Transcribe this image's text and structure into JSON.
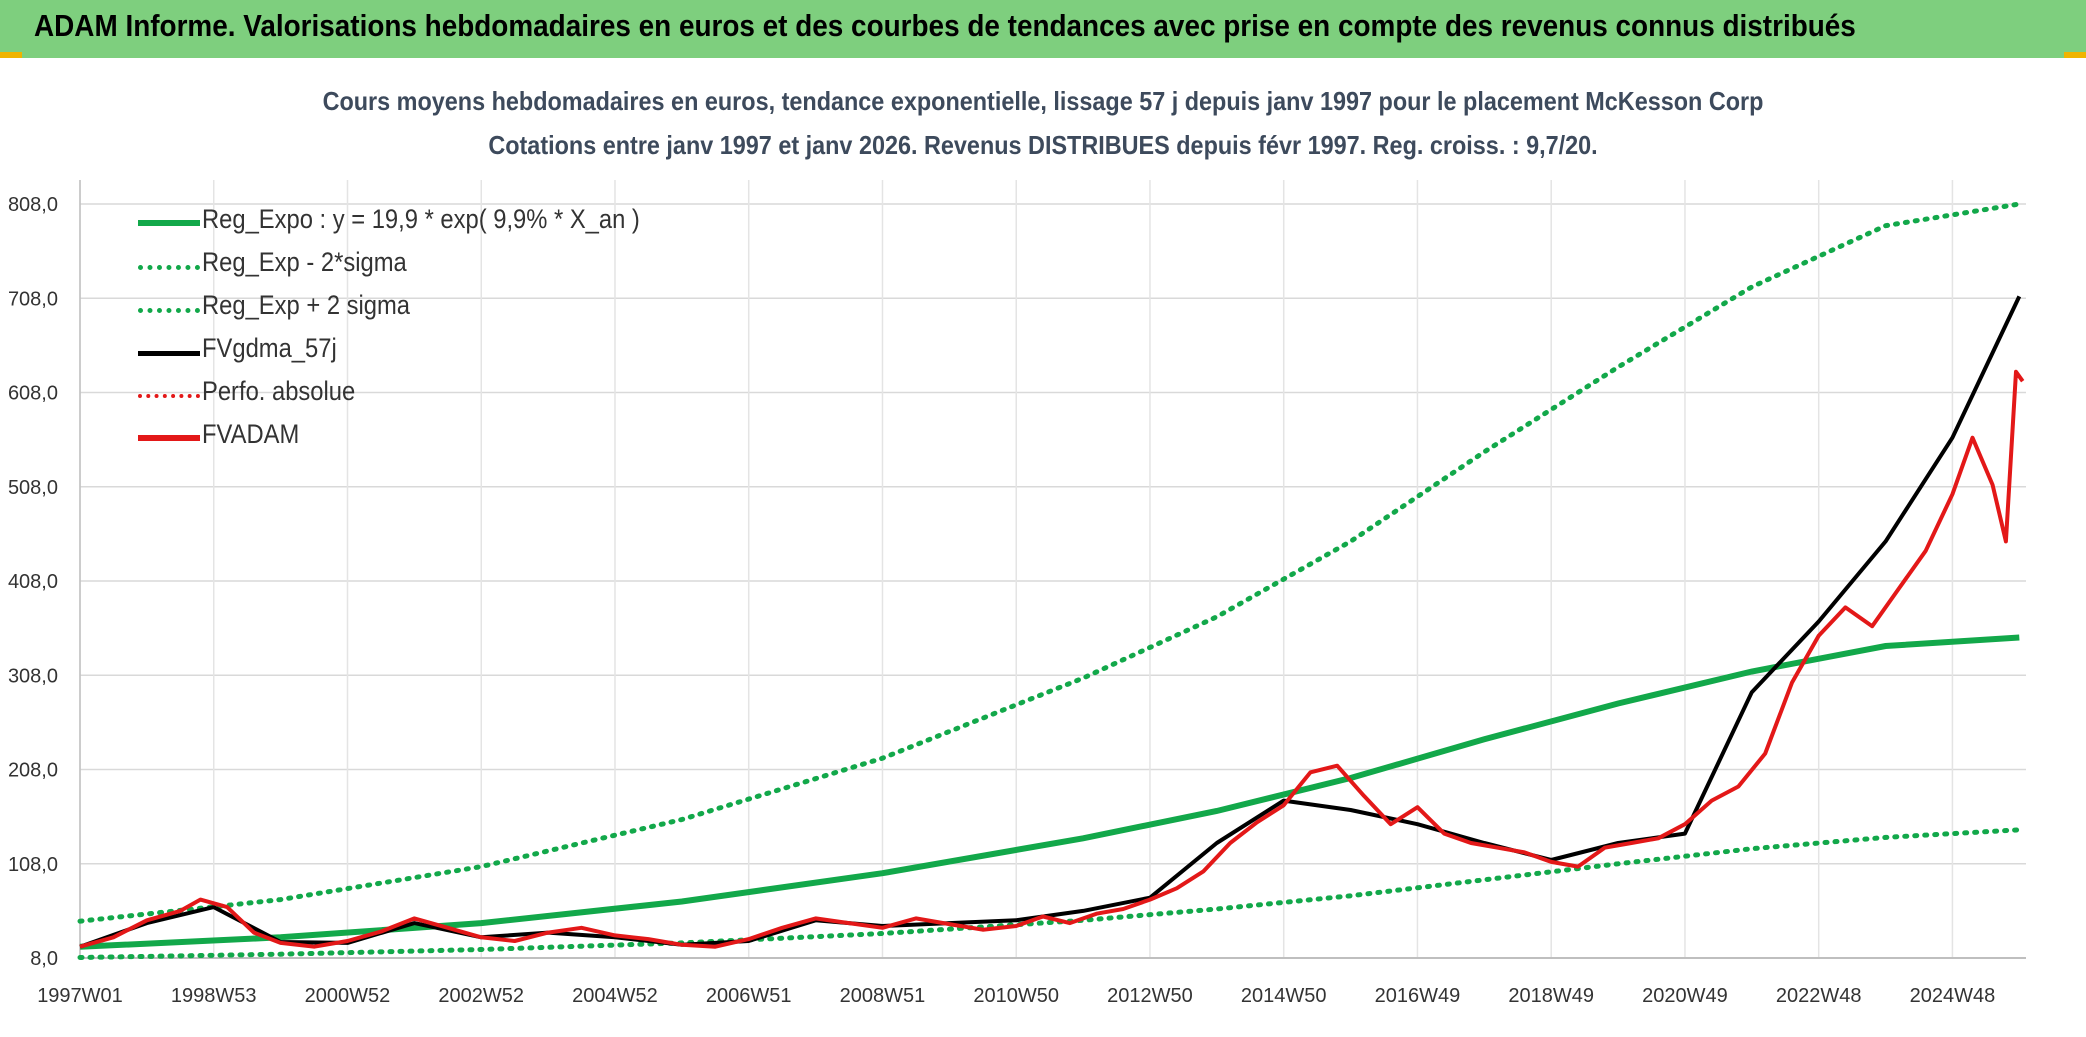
{
  "header": {
    "title": "ADAM Informe. Valorisations hebdomadaires en euros et des courbes de tendances avec prise en compte des revenus connus distribués"
  },
  "colors": {
    "header_bg": "#7ecf7e",
    "reg_green": "#12a84a",
    "fvgdma": "#000000",
    "fvadam": "#e31818",
    "grid": "#d9d9d9"
  },
  "chart_data": {
    "type": "line",
    "title_line1": "Cours moyens hebdomadaires en euros, tendance exponentielle, lissage 57 j depuis janv 1997 pour le placement McKesson Corp",
    "title_line2": "Cotations entre janv 1997 et janv 2026. Revenus DISTRIBUES depuis févr 1997. Reg. croiss. : 9,7/20.",
    "x_unit": "years since 1997W01",
    "xlim": [
      0,
      29.1
    ],
    "ylim": [
      8,
      808
    ],
    "yticks": [
      8,
      108,
      208,
      308,
      408,
      508,
      608,
      708,
      808
    ],
    "ytick_labels": [
      "8,0",
      "108,0",
      "208,0",
      "308,0",
      "408,0",
      "508,0",
      "608,0",
      "708,0",
      "808,0"
    ],
    "xtick_positions": [
      0,
      2,
      4,
      6,
      8,
      10,
      12,
      14,
      16,
      18,
      20,
      22,
      24,
      26,
      28
    ],
    "xtick_labels": [
      "1997W01",
      "1998W53",
      "2000W52",
      "2002W52",
      "2004W52",
      "2006W51",
      "2008W51",
      "2010W50",
      "2012W50",
      "2014W50",
      "2016W49",
      "2018W49",
      "2020W49",
      "2022W48",
      "2024W48"
    ],
    "legend": [
      {
        "name": "Reg_Expo : y = 19,9 * exp( 9,9% *  X_an )",
        "style": "solid",
        "color": "#12a84a"
      },
      {
        "name": "Reg_Exp - 2*sigma",
        "style": "dotted",
        "color": "#12a84a"
      },
      {
        "name": "Reg_Exp + 2 sigma",
        "style": "dotted",
        "color": "#12a84a"
      },
      {
        "name": "FVgdma_57j",
        "style": "solid",
        "color": "#000000"
      },
      {
        "name": "Perfo. absolue",
        "style": "dotted",
        "color": "#e31818"
      },
      {
        "name": "FVADAM",
        "style": "solid",
        "color": "#e31818"
      }
    ],
    "series": [
      {
        "name": "Reg_Expo",
        "x": [
          0,
          3,
          6,
          9,
          12,
          15,
          17,
          19,
          21,
          23,
          25,
          27,
          29
        ],
        "values": [
          19.9,
          30,
          45,
          68,
          98,
          135,
          164,
          199,
          240,
          278,
          312,
          339,
          348
        ]
      },
      {
        "name": "Reg_Exp - 2*sigma",
        "x": [
          0,
          3,
          6,
          9,
          12,
          15,
          17,
          19,
          21,
          23,
          25,
          27,
          29
        ],
        "values": [
          8.5,
          12,
          17,
          24,
          34,
          48,
          60,
          74,
          91,
          108,
          124,
          136,
          144
        ]
      },
      {
        "name": "Reg_Exp + 2 sigma",
        "x": [
          0,
          3,
          6,
          9,
          12,
          15,
          17,
          19,
          21,
          23,
          25,
          27,
          29
        ],
        "values": [
          47,
          70,
          105,
          155,
          220,
          305,
          370,
          450,
          545,
          635,
          720,
          785,
          808
        ]
      },
      {
        "name": "FVADAM",
        "x": [
          0,
          0.5,
          1,
          1.5,
          1.8,
          2.2,
          2.6,
          3,
          3.5,
          4,
          4.5,
          5,
          5.5,
          6,
          6.5,
          7,
          7.5,
          8,
          8.5,
          9,
          9.5,
          10,
          10.5,
          11,
          11.5,
          12,
          12.5,
          13,
          13.5,
          14,
          14.4,
          14.8,
          15.2,
          15.6,
          16,
          16.4,
          16.8,
          17.2,
          17.6,
          18,
          18.4,
          18.8,
          19.2,
          19.6,
          20,
          20.4,
          20.8,
          21.2,
          21.6,
          22,
          22.4,
          22.8,
          23.2,
          23.6,
          24,
          24.4,
          24.8,
          25.2,
          25.6,
          26,
          26.4,
          26.8,
          27.2,
          27.6,
          28,
          28.3,
          28.6,
          28.8,
          28.95,
          29.05
        ],
        "values": [
          20,
          30,
          48,
          58,
          70,
          62,
          35,
          24,
          20,
          26,
          36,
          50,
          40,
          30,
          26,
          35,
          40,
          32,
          28,
          22,
          20,
          28,
          40,
          50,
          45,
          40,
          50,
          44,
          38,
          42,
          52,
          45,
          55,
          60,
          70,
          82,
          100,
          130,
          152,
          170,
          205,
          212,
          180,
          150,
          168,
          140,
          130,
          125,
          120,
          110,
          105,
          125,
          130,
          135,
          150,
          175,
          190,
          225,
          300,
          350,
          380,
          360,
          400,
          440,
          500,
          560,
          510,
          450,
          630,
          620
        ]
      },
      {
        "name": "FVgdma_57j",
        "x": [
          0,
          1,
          2,
          3,
          4,
          5,
          6,
          7,
          8,
          9,
          10,
          11,
          12,
          13,
          14,
          15,
          16,
          17,
          18,
          19,
          20,
          21,
          22,
          23,
          24,
          25,
          26,
          27,
          28,
          29
        ],
        "values": [
          20,
          45,
          62,
          25,
          24,
          45,
          30,
          35,
          30,
          22,
          26,
          48,
          42,
          45,
          48,
          58,
          72,
          130,
          175,
          165,
          150,
          130,
          112,
          130,
          140,
          290,
          365,
          450,
          560,
          710
        ]
      }
    ]
  }
}
